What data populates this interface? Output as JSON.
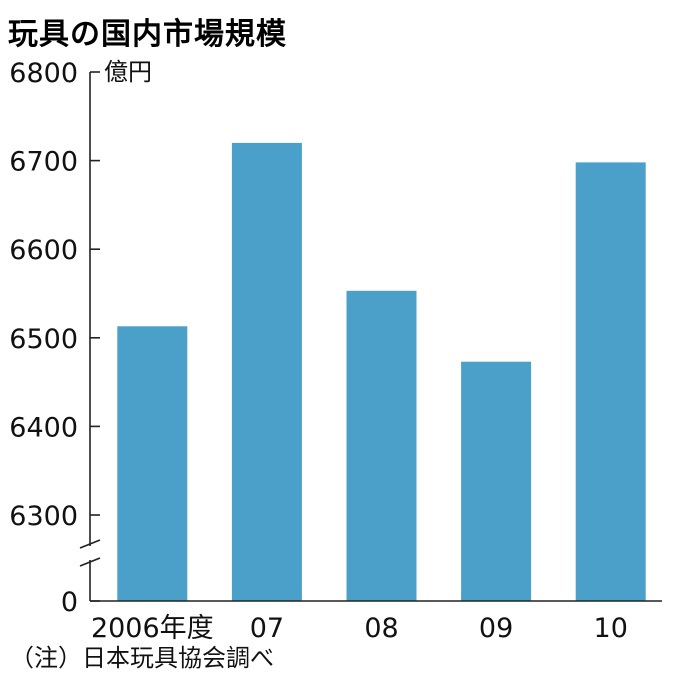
{
  "chart_data": {
    "type": "bar",
    "title": "玩具の国内市場規模",
    "unit": "億円",
    "categories": [
      "2006年度",
      "07",
      "08",
      "09",
      "10"
    ],
    "values": [
      6513,
      6720,
      6553,
      6473,
      6698
    ],
    "ylim": [
      6300,
      6800
    ],
    "yticks": [
      "6800",
      "6700",
      "6600",
      "6500",
      "6400",
      "6300",
      "0"
    ],
    "axis_break": true,
    "grid": false,
    "bar_color": "#4aa0c8",
    "note": "（注）日本玩具協会調べ"
  }
}
